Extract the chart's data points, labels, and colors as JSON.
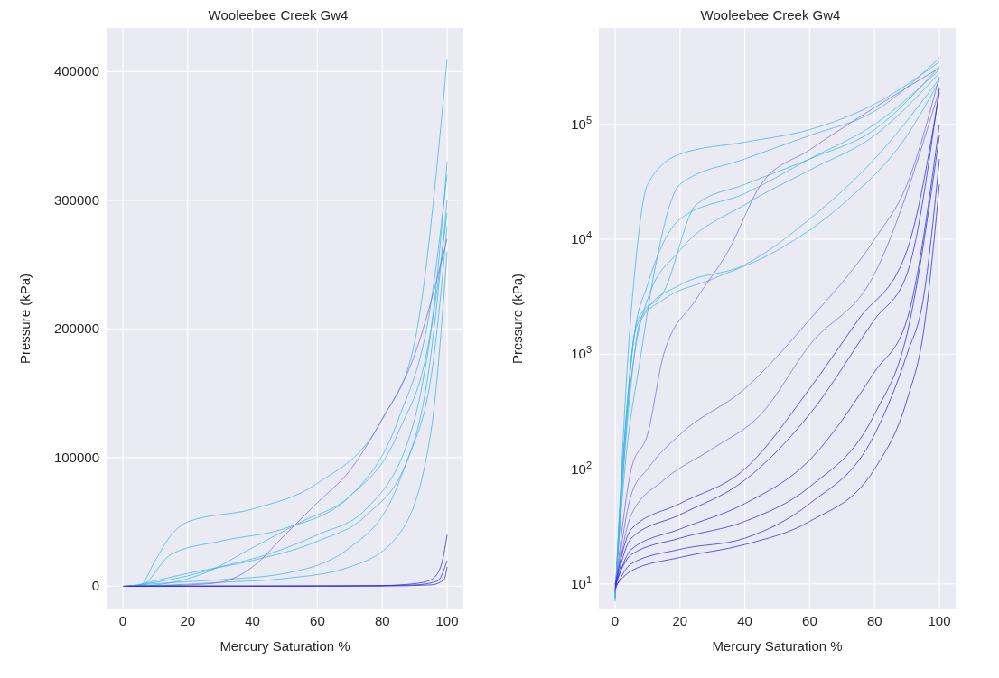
{
  "chart_data": [
    {
      "type": "line",
      "title": "Wooleebee Creek Gw4",
      "xlabel": "Mercury Saturation %",
      "ylabel": "Pressure (kPa)",
      "xlim": [
        -5,
        105
      ],
      "xticks": [
        0,
        20,
        40,
        60,
        80,
        100
      ],
      "ylim": [
        -18000,
        434000
      ],
      "yticks": [
        0,
        100000,
        200000,
        300000,
        400000
      ],
      "grid": true,
      "marker": "none",
      "line_style": "solid",
      "series": [
        {
          "color": "#3cb4e8",
          "x": [
            0,
            5,
            10,
            15,
            20,
            40,
            60,
            80,
            90,
            100
          ],
          "values": [
            0,
            0,
            20000,
            40000,
            50000,
            60000,
            80000,
            130000,
            190000,
            410000
          ]
        },
        {
          "color": "#3cb4e8",
          "x": [
            0.5,
            5,
            15,
            30,
            50,
            70,
            85,
            95,
            100
          ],
          "values": [
            0,
            0,
            25000,
            35000,
            45000,
            70000,
            130000,
            220000,
            320000
          ]
        },
        {
          "color": "#3cb4e8",
          "x": [
            1,
            10,
            30,
            50,
            70,
            85,
            95,
            100
          ],
          "values": [
            0,
            2000,
            5000,
            10000,
            30000,
            80000,
            180000,
            300000
          ]
        },
        {
          "color": "#3cb4e8",
          "x": [
            1.5,
            10,
            20,
            30,
            45,
            60,
            75,
            90,
            100
          ],
          "values": [
            0,
            3000,
            8000,
            15000,
            25000,
            40000,
            60000,
            130000,
            290000
          ]
        },
        {
          "color": "#3cb4e8",
          "x": [
            2,
            15,
            30,
            50,
            70,
            85,
            95,
            100
          ],
          "values": [
            0,
            1000,
            3000,
            6000,
            15000,
            40000,
            120000,
            260000
          ]
        },
        {
          "color": "#3cb4e8",
          "x": [
            2.5,
            10,
            25,
            40,
            55,
            70,
            85,
            95,
            100
          ],
          "values": [
            0,
            1000,
            10000,
            30000,
            50000,
            70000,
            120000,
            200000,
            330000
          ]
        },
        {
          "color": "#3cb4e8",
          "x": [
            3,
            20,
            40,
            60,
            75,
            88,
            96,
            100
          ],
          "values": [
            0,
            10000,
            20000,
            35000,
            55000,
            100000,
            180000,
            280000
          ]
        },
        {
          "color": "#7a6ad8",
          "x": [
            3.5,
            20,
            30,
            40,
            50,
            60,
            70,
            80,
            90,
            100
          ],
          "values": [
            0,
            1000,
            3000,
            15000,
            40000,
            65000,
            90000,
            130000,
            180000,
            270000
          ]
        },
        {
          "color": "#2a2ae6",
          "x": [
            0,
            50,
            80,
            90,
            95,
            98,
            100
          ],
          "values": [
            0,
            100,
            500,
            2000,
            5000,
            15000,
            40000
          ]
        },
        {
          "color": "#2a2ae6",
          "x": [
            0.5,
            70,
            90,
            97,
            100
          ],
          "values": [
            0,
            200,
            1000,
            4000,
            20000
          ]
        },
        {
          "color": "#2a2ae6",
          "x": [
            1,
            80,
            95,
            99,
            100
          ],
          "values": [
            0,
            100,
            1000,
            5000,
            15000
          ]
        }
      ]
    },
    {
      "type": "line",
      "title": "Wooleebee Creek Gw4",
      "xlabel": "Mercury Saturation %",
      "ylabel": "Pressure (kPa)",
      "log": "y",
      "xlim": [
        -5,
        105
      ],
      "xticks": [
        0,
        20,
        40,
        60,
        80,
        100
      ],
      "ylim": [
        6,
        690000
      ],
      "yticks": [
        {
          "value": 10,
          "label": "10$^{1}$"
        },
        {
          "value": 100,
          "label": "10$^{2}$"
        },
        {
          "value": 1000,
          "label": "10$^{3}$"
        },
        {
          "value": 10000,
          "label": "10$^{4}$"
        },
        {
          "value": 100000,
          "label": "10$^{5}$"
        }
      ],
      "grid": true,
      "marker": "none",
      "line_style": "solid",
      "series": [
        {
          "color": "#3cb4e8",
          "x": [
            0,
            2,
            4,
            6,
            10,
            20,
            40,
            60,
            80,
            100
          ],
          "values": [
            7,
            100,
            1000,
            5000,
            30000,
            55000,
            70000,
            90000,
            150000,
            350000
          ]
        },
        {
          "color": "#3cb4e8",
          "x": [
            0,
            3,
            6,
            10,
            20,
            40,
            60,
            80,
            100
          ],
          "values": [
            7.2,
            200,
            1500,
            4000,
            15000,
            25000,
            50000,
            100000,
            300000
          ]
        },
        {
          "color": "#3cb4e8",
          "x": [
            0,
            3,
            6,
            10,
            20,
            40,
            60,
            80,
            100
          ],
          "values": [
            7.4,
            150,
            1500,
            2500,
            4000,
            6000,
            15000,
            50000,
            250000
          ]
        },
        {
          "color": "#3cb4e8",
          "x": [
            0,
            3,
            7,
            15,
            25,
            40,
            60,
            80,
            100
          ],
          "values": [
            7.6,
            200,
            2000,
            3500,
            20000,
            30000,
            50000,
            90000,
            320000
          ]
        },
        {
          "color": "#3cb4e8",
          "x": [
            0,
            2,
            6,
            10,
            20,
            40,
            60,
            80,
            100
          ],
          "values": [
            7.8,
            80,
            1000,
            3000,
            8000,
            20000,
            40000,
            80000,
            280000
          ]
        },
        {
          "color": "#3cb4e8",
          "x": [
            0,
            3,
            8,
            12,
            20,
            40,
            60,
            80,
            100
          ],
          "values": [
            8,
            100,
            1000,
            5000,
            30000,
            50000,
            80000,
            130000,
            380000
          ]
        },
        {
          "color": "#3cb4e8",
          "x": [
            0,
            4,
            8,
            15,
            30,
            50,
            70,
            90,
            100
          ],
          "values": [
            8.2,
            300,
            2000,
            3000,
            4500,
            8000,
            20000,
            80000,
            240000
          ]
        },
        {
          "color": "#7a6ad8",
          "x": [
            0,
            5,
            10,
            15,
            25,
            35,
            45,
            60,
            80,
            100
          ],
          "values": [
            8.4,
            100,
            200,
            1000,
            3000,
            8000,
            30000,
            60000,
            140000,
            310000
          ]
        },
        {
          "color": "#7a6ad8",
          "x": [
            0,
            5,
            10,
            20,
            40,
            60,
            80,
            90,
            100
          ],
          "values": [
            8.6,
            60,
            100,
            200,
            500,
            2000,
            10000,
            30000,
            260000
          ]
        },
        {
          "color": "#7a6ad8",
          "x": [
            0,
            5,
            15,
            30,
            45,
            60,
            80,
            100
          ],
          "values": [
            8.8,
            40,
            80,
            150,
            300,
            1200,
            5000,
            200000
          ]
        },
        {
          "color": "#2a2ae6",
          "x": [
            0,
            5,
            20,
            40,
            60,
            80,
            90,
            95,
            100
          ],
          "values": [
            9,
            15,
            20,
            25,
            50,
            200,
            1000,
            3000,
            50000
          ]
        },
        {
          "color": "#2a2ae6",
          "x": [
            0,
            5,
            20,
            40,
            60,
            80,
            90,
            100
          ],
          "values": [
            9.2,
            20,
            30,
            50,
            120,
            700,
            2000,
            100000
          ]
        },
        {
          "color": "#2a2ae6",
          "x": [
            0,
            5,
            20,
            40,
            60,
            80,
            90,
            100
          ],
          "values": [
            9.4,
            25,
            40,
            80,
            300,
            2000,
            5000,
            210000
          ]
        },
        {
          "color": "#2a2ae6",
          "x": [
            0,
            5,
            20,
            40,
            60,
            80,
            90,
            95,
            100
          ],
          "values": [
            9.6,
            13,
            17,
            22,
            35,
            100,
            400,
            1500,
            30000
          ]
        },
        {
          "color": "#2a2ae6",
          "x": [
            0,
            5,
            20,
            40,
            60,
            75,
            90,
            100
          ],
          "values": [
            9.8,
            30,
            50,
            100,
            500,
            2000,
            8000,
            190000
          ]
        },
        {
          "color": "#2a2ae6",
          "x": [
            0,
            5,
            20,
            40,
            60,
            80,
            90,
            100
          ],
          "values": [
            10,
            18,
            25,
            35,
            70,
            300,
            1500,
            80000
          ]
        }
      ]
    }
  ]
}
